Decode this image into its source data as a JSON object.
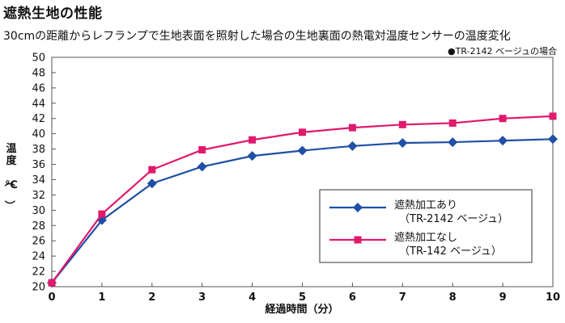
{
  "chart_data": {
    "type": "line",
    "title": "遮熱生地の性能",
    "subtitle": "30cmの距離からレフランプで生地表面を照射した場合の生地裏面の熱電対温度センサーの温度変化",
    "note": "●TR-2142 ベージュの場合",
    "xlabel": "経過時間（分）",
    "ylabel": "温度（℃）",
    "x": [
      0,
      1,
      2,
      3,
      4,
      5,
      6,
      7,
      8,
      9,
      10
    ],
    "xlim": [
      0,
      10
    ],
    "ylim": [
      20,
      50
    ],
    "ytick_step": 2,
    "grid": false,
    "legend_position": "lower-right",
    "series": [
      {
        "name": "遮熱加工あり",
        "name_line2": "（TR-2142 ベージュ）",
        "color": "#1f4fa6",
        "marker": "diamond",
        "values": [
          20.5,
          28.7,
          33.5,
          35.7,
          37.1,
          37.8,
          38.4,
          38.8,
          38.9,
          39.1,
          39.3
        ]
      },
      {
        "name": "遮熱加工なし",
        "name_line2": "（TR-142 ベージュ）",
        "color": "#e0196c",
        "marker": "square",
        "values": [
          20.5,
          29.5,
          35.3,
          37.9,
          39.2,
          40.2,
          40.8,
          41.2,
          41.4,
          42.0,
          42.3
        ]
      }
    ]
  }
}
